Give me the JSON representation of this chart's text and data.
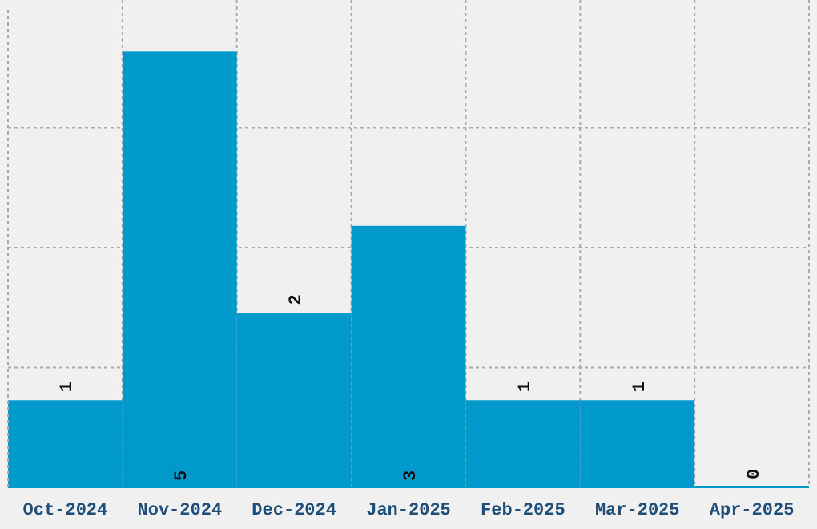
{
  "chart_data": {
    "type": "bar",
    "categories": [
      "Oct-2024",
      "Nov-2024",
      "Dec-2024",
      "Jan-2025",
      "Feb-2025",
      "Mar-2025",
      "Apr-2025"
    ],
    "values": [
      1,
      5,
      2,
      3,
      1,
      1,
      0
    ],
    "color": "#0099cc",
    "ylim": [
      0,
      5.5
    ],
    "yticks": [
      {
        "value": 1.375,
        "label": null
      },
      {
        "value": 2.75,
        "label": null
      },
      {
        "value": 4.125,
        "label": null
      }
    ],
    "tick_labels": "x",
    "grid": true,
    "data_labels": true
  }
}
